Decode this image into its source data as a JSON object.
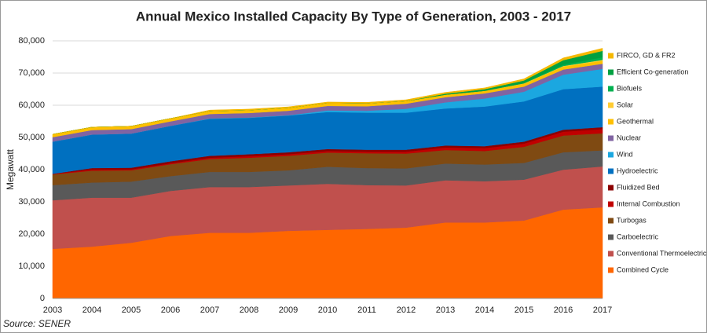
{
  "chart_data": {
    "type": "stacked-area",
    "title": "Annual Mexico Installed Capacity By Type of Generation, 2003 - 2017",
    "y_label": "Megawatt",
    "source": "Source: SENER",
    "categories": [
      "2003",
      "2004",
      "2005",
      "2006",
      "2007",
      "2008",
      "2009",
      "2010",
      "2011",
      "2012",
      "2013",
      "2014",
      "2015",
      "2016",
      "2017"
    ],
    "ylim": [
      0,
      80000
    ],
    "yticks": [
      0,
      {
        "value": 10000,
        "label": "10,000"
      },
      {
        "value": 20000,
        "label": "20,000"
      },
      {
        "value": 30000,
        "label": "30,000"
      },
      {
        "value": 40000,
        "label": "40,000"
      },
      {
        "value": 50000,
        "label": "50,000"
      },
      {
        "value": 60000,
        "label": "60,000"
      },
      {
        "value": 70000,
        "label": "70,000"
      },
      {
        "value": 80000,
        "label": "80,000"
      }
    ],
    "grid": true,
    "legend": "right",
    "series": [
      {
        "name": "Combined  Cycle",
        "color": "#ff6600",
        "values": [
          15400,
          16100,
          17300,
          19400,
          20400,
          20400,
          21000,
          21300,
          21600,
          22000,
          23600,
          23600,
          24200,
          27600,
          28300
        ]
      },
      {
        "name": "Conventional  Thermoelectric",
        "color": "#c0504d",
        "values": [
          15100,
          15200,
          14000,
          14000,
          14200,
          14200,
          14100,
          14300,
          13600,
          13100,
          13100,
          12800,
          12700,
          12400,
          12700
        ]
      },
      {
        "name": "Carboelectric",
        "color": "#595959",
        "values": [
          4700,
          4700,
          5000,
          4600,
          4700,
          4700,
          4700,
          5300,
          5300,
          5300,
          5200,
          5200,
          5200,
          5400,
          5000
        ]
      },
      {
        "name": "Turbogas",
        "color": "#7f4a12",
        "values": [
          3300,
          3700,
          3500,
          3700,
          4000,
          4400,
          4500,
          4400,
          4600,
          4600,
          4200,
          4200,
          5000,
          5200,
          5300
        ]
      },
      {
        "name": "Internal  Combustion",
        "color": "#c00000",
        "values": [
          200,
          300,
          300,
          300,
          400,
          500,
          500,
          500,
          500,
          600,
          800,
          900,
          1000,
          1200,
          1300
        ]
      },
      {
        "name": "Fluidized Bed",
        "color": "#8b0000",
        "values": [
          0,
          500,
          500,
          600,
          600,
          600,
          600,
          600,
          600,
          600,
          600,
          600,
          600,
          600,
          600
        ]
      },
      {
        "name": "Hydroelectric",
        "color": "#0070c0",
        "values": [
          10000,
          10400,
          10600,
          11000,
          11500,
          11300,
          11400,
          11500,
          11500,
          11500,
          11500,
          12300,
          12500,
          12600,
          12600
        ]
      },
      {
        "name": "Wind",
        "color": "#1ba7e0",
        "values": [
          0,
          0,
          0,
          0,
          100,
          100,
          100,
          500,
          600,
          1200,
          1900,
          2500,
          3000,
          4500,
          5500
        ]
      },
      {
        "name": "Nuclear",
        "color": "#8064a2",
        "values": [
          1400,
          1400,
          1400,
          1400,
          1400,
          1400,
          1400,
          1400,
          1400,
          1600,
          1600,
          1600,
          1600,
          1600,
          1600
        ]
      },
      {
        "name": "Geothermal",
        "color": "#ffc000",
        "values": [
          900,
          900,
          900,
          900,
          900,
          900,
          900,
          900,
          900,
          800,
          800,
          800,
          900,
          900,
          900
        ]
      },
      {
        "name": "Solar",
        "color": "#ffcc33",
        "values": [
          0,
          0,
          0,
          0,
          0,
          0,
          0,
          0,
          0,
          0,
          0,
          0,
          100,
          200,
          300
        ]
      },
      {
        "name": "Biofuels",
        "color": "#00b050",
        "values": [
          0,
          0,
          0,
          0,
          0,
          0,
          0,
          0,
          0,
          0,
          0,
          0,
          100,
          400,
          800
        ]
      },
      {
        "name": "Efficient  Co-generation",
        "color": "#00a040",
        "values": [
          0,
          0,
          0,
          0,
          0,
          0,
          0,
          0,
          0,
          0,
          300,
          500,
          800,
          1400,
          2000
        ]
      },
      {
        "name": "FIRCO, GD & FR2",
        "color": "#f5b800",
        "values": [
          0,
          0,
          0,
          0,
          300,
          300,
          300,
          300,
          300,
          400,
          400,
          400,
          500,
          700,
          800
        ]
      }
    ]
  }
}
